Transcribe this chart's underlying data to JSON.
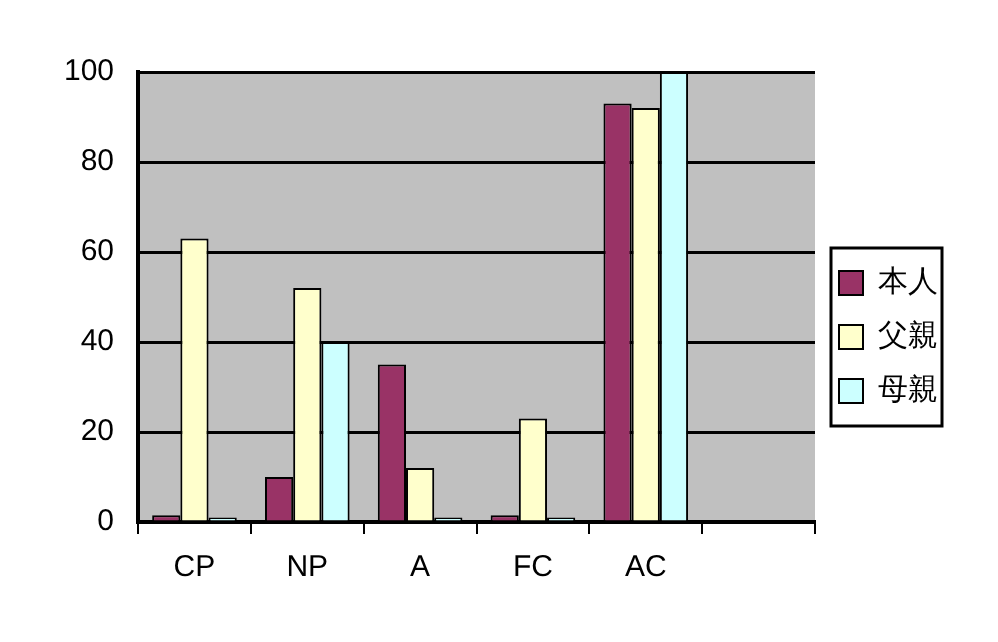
{
  "chart_data": {
    "type": "bar",
    "categories": [
      "CP",
      "NP",
      "A",
      "FC",
      "AC",
      null
    ],
    "series": [
      {
        "name": "本人",
        "color": "#993366",
        "values": [
          1.5,
          10,
          35,
          1.5,
          93,
          null
        ]
      },
      {
        "name": "父親",
        "color": "#ffffcc",
        "values": [
          63,
          52,
          12,
          23,
          92,
          null
        ]
      },
      {
        "name": "母親",
        "color": "#ccffff",
        "values": [
          1,
          40,
          1,
          1,
          100,
          null
        ]
      }
    ],
    "ylim": [
      0,
      100
    ],
    "yticks": [
      0,
      20,
      40,
      60,
      80,
      100
    ],
    "grid": "y",
    "legend": "right"
  }
}
